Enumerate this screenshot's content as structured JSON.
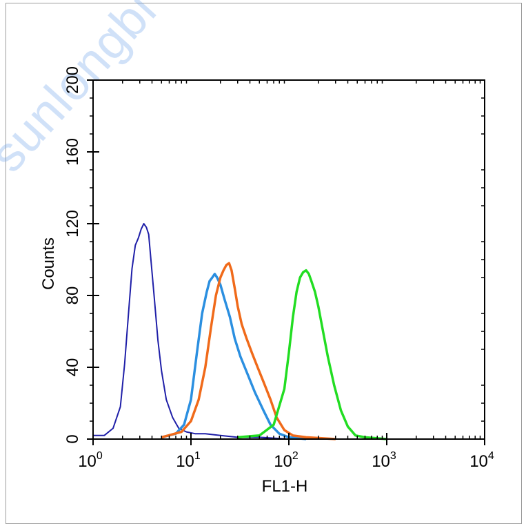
{
  "watermark": "sunlongbi",
  "chart_data": {
    "type": "line",
    "xlabel": "FL1-H",
    "ylabel": "Counts",
    "x_scale": "log",
    "xlim": [
      1,
      10000
    ],
    "ylim": [
      0,
      200
    ],
    "grid": false,
    "x_ticks": [
      {
        "value": 1,
        "base": "10",
        "exp": "0"
      },
      {
        "value": 10,
        "base": "10",
        "exp": "1"
      },
      {
        "value": 100,
        "base": "10",
        "exp": "2"
      },
      {
        "value": 1000,
        "base": "10",
        "exp": "3"
      },
      {
        "value": 10000,
        "base": "10",
        "exp": "4"
      }
    ],
    "y_ticks": [
      0,
      40,
      80,
      120,
      160,
      200
    ],
    "series": [
      {
        "color": "#1f1fa8",
        "x": [
          1.0,
          1.3,
          1.6,
          1.9,
          2.1,
          2.3,
          2.5,
          2.7,
          2.9,
          3.1,
          3.3,
          3.5,
          3.7,
          3.9,
          4.2,
          4.6,
          5.0,
          5.6,
          6.5,
          7.5,
          9.0,
          11,
          14,
          20,
          30,
          50,
          100
        ],
        "y": [
          2,
          2,
          6,
          18,
          42,
          70,
          95,
          108,
          112,
          117,
          120,
          118,
          114,
          100,
          80,
          55,
          38,
          22,
          12,
          6,
          4,
          3,
          3,
          2,
          1,
          1,
          0
        ]
      },
      {
        "color": "#2b8fe0",
        "x": [
          5,
          7,
          8.5,
          10,
          11.5,
          13,
          14.5,
          15.5,
          16.5,
          17.5,
          18.5,
          20,
          22,
          25,
          28,
          32,
          38,
          45,
          55,
          65,
          80,
          100,
          150
        ],
        "y": [
          1,
          3,
          8,
          22,
          48,
          70,
          82,
          88,
          90,
          92,
          90,
          86,
          78,
          68,
          56,
          46,
          36,
          26,
          16,
          8,
          3,
          1,
          0
        ]
      },
      {
        "color": "#f06a1a",
        "x": [
          5,
          8,
          10,
          12,
          14,
          16,
          18,
          20,
          21.5,
          23,
          24.5,
          26,
          28,
          30,
          33,
          37,
          42,
          48,
          55,
          65,
          75,
          90,
          110,
          150,
          300
        ],
        "y": [
          1,
          4,
          10,
          22,
          40,
          62,
          80,
          90,
          94,
          97,
          98,
          94,
          84,
          74,
          64,
          56,
          48,
          40,
          32,
          22,
          12,
          5,
          2,
          1,
          0
        ]
      },
      {
        "color": "#22dd22",
        "x": [
          30,
          50,
          70,
          90,
          100,
          110,
          120,
          130,
          140,
          150,
          160,
          170,
          185,
          200,
          220,
          250,
          290,
          340,
          400,
          480,
          600,
          1000
        ],
        "y": [
          1,
          2,
          8,
          28,
          48,
          68,
          82,
          90,
          93,
          94,
          92,
          88,
          82,
          74,
          62,
          46,
          30,
          16,
          7,
          2,
          1,
          0
        ]
      }
    ]
  }
}
